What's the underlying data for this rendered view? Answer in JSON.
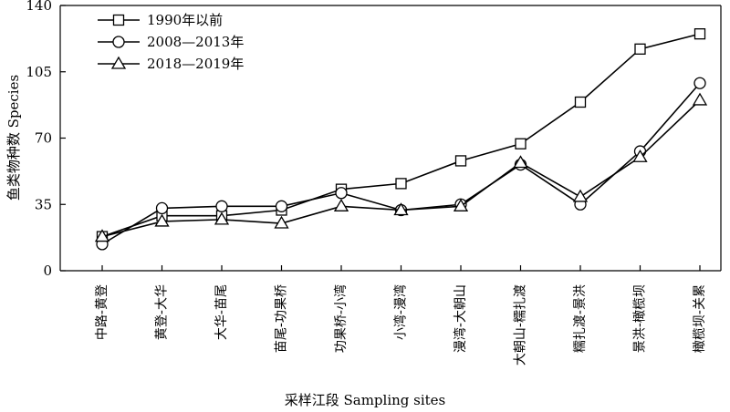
{
  "chart_data": {
    "type": "line",
    "xlabel": "采样江段 Sampling sites",
    "ylabel": "鱼类物种数 Species",
    "ylim": [
      0,
      140
    ],
    "yticks": [
      0,
      35,
      70,
      105,
      140
    ],
    "grid": false,
    "legend_position": "top-left",
    "categories": [
      "中路-黄登",
      "黄登-大华",
      "大华-苗尾",
      "苗尾-功果桥",
      "功果桥-小湾",
      "小湾-漫湾",
      "漫湾-大朝山",
      "大朝山-糯扎渡",
      "糯扎渡-景洪",
      "景洪-橄榄坝",
      "橄榄坝-关累"
    ],
    "series": [
      {
        "name": "1990年以前",
        "marker": "square",
        "values": [
          18,
          29,
          29,
          32,
          43,
          46,
          58,
          67,
          89,
          117,
          125
        ]
      },
      {
        "name": "2008—2013年",
        "marker": "circle",
        "values": [
          14,
          33,
          34,
          34,
          41,
          32,
          35,
          56,
          35,
          63,
          99
        ]
      },
      {
        "name": "2018—2019年",
        "marker": "triangle",
        "values": [
          18,
          26,
          27,
          25,
          34,
          32,
          34,
          57,
          39,
          60,
          90
        ]
      }
    ]
  }
}
